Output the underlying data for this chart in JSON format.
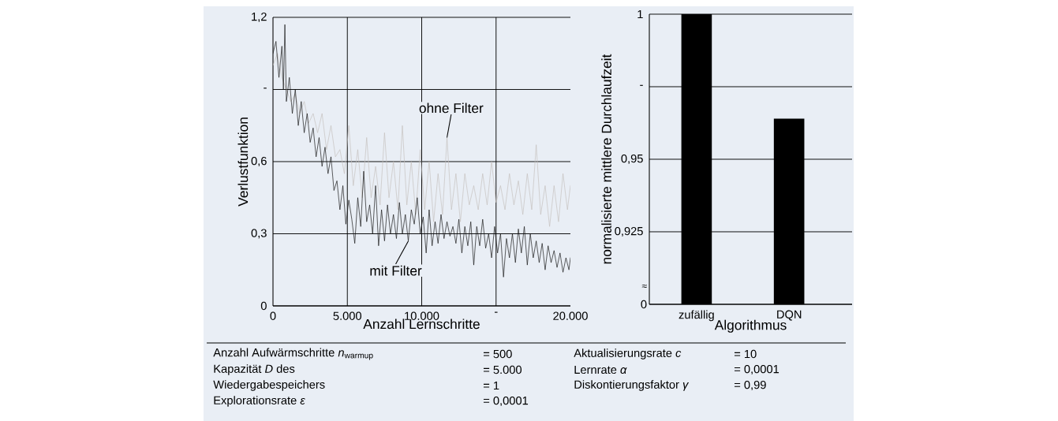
{
  "chart_data": [
    {
      "type": "line",
      "xlabel": "Anzahl Lernschritte",
      "ylabel": "Verlustfunktion",
      "xlim": [
        0,
        20000
      ],
      "ylim": [
        0,
        1.2
      ],
      "xticks": [
        0,
        {
          "value": 5000,
          "label": "5.000"
        },
        {
          "value": 10000,
          "label": "10.000"
        },
        {
          "value": 15000,
          "label": "-"
        },
        {
          "value": 20000,
          "label": "20.000"
        }
      ],
      "yticks": [
        0,
        {
          "value": 0.3,
          "label": "0,3"
        },
        {
          "value": 0.6,
          "label": "0,6"
        },
        {
          "value": 0.9,
          "label": "-"
        },
        {
          "value": 1.2,
          "label": "1,2"
        }
      ],
      "grid": true,
      "marker": "none",
      "series": [
        {
          "name": "ohne Filter",
          "color": "#c4bfbd",
          "x": [
            0,
            300,
            600,
            900,
            1200,
            1500,
            1800,
            2100,
            2400,
            2700,
            3000,
            3300,
            3600,
            3900,
            4200,
            4500,
            4800,
            5100,
            5400,
            5700,
            6000,
            6300,
            6600,
            6900,
            7200,
            7500,
            7800,
            8100,
            8400,
            8700,
            9000,
            9300,
            9600,
            9900,
            10200,
            10500,
            10800,
            11100,
            11400,
            11700,
            12000,
            12300,
            12600,
            12900,
            13200,
            13500,
            13800,
            14100,
            14400,
            14700,
            15000,
            15300,
            15600,
            15900,
            16200,
            16500,
            16800,
            17100,
            17400,
            17700,
            18000,
            18300,
            18600,
            18900,
            19200,
            19500,
            19800,
            20000
          ],
          "values": [
            1.0,
            1.05,
            0.95,
            0.9,
            0.85,
            0.88,
            0.8,
            0.85,
            0.76,
            0.8,
            0.72,
            0.8,
            0.65,
            0.75,
            0.62,
            0.65,
            0.55,
            0.75,
            0.5,
            0.65,
            0.45,
            0.7,
            0.45,
            0.58,
            0.42,
            0.72,
            0.45,
            0.6,
            0.4,
            0.75,
            0.42,
            0.6,
            0.38,
            0.65,
            0.4,
            0.6,
            0.35,
            0.55,
            0.38,
            0.7,
            0.4,
            0.55,
            0.35,
            0.55,
            0.42,
            0.5,
            0.4,
            0.55,
            0.42,
            0.6,
            0.43,
            0.5,
            0.4,
            0.55,
            0.42,
            0.52,
            0.38,
            0.55,
            0.4,
            0.67,
            0.38,
            0.5,
            0.33,
            0.5,
            0.35,
            0.55,
            0.4,
            0.5
          ]
        },
        {
          "name": "mit Filter",
          "color": "#111111",
          "x": [
            0,
            200,
            400,
            600,
            700,
            800,
            900,
            1100,
            1300,
            1500,
            1700,
            1900,
            2100,
            2300,
            2500,
            2700,
            2900,
            3100,
            3300,
            3500,
            3700,
            3900,
            4100,
            4300,
            4500,
            4700,
            4900,
            5100,
            5300,
            5500,
            5700,
            5900,
            6100,
            6300,
            6500,
            6700,
            6900,
            7100,
            7300,
            7500,
            7700,
            7900,
            8100,
            8300,
            8500,
            8700,
            8900,
            9100,
            9300,
            9500,
            9700,
            9900,
            10100,
            10300,
            10500,
            10700,
            10900,
            11100,
            11300,
            11500,
            11700,
            11900,
            12100,
            12300,
            12500,
            12700,
            12900,
            13100,
            13300,
            13500,
            13700,
            13900,
            14100,
            14300,
            14500,
            14700,
            14900,
            15100,
            15300,
            15500,
            15700,
            15900,
            16100,
            16300,
            16500,
            16700,
            16900,
            17100,
            17300,
            17500,
            17700,
            17900,
            18100,
            18300,
            18500,
            18700,
            18900,
            19100,
            19300,
            19500,
            19700,
            19900,
            20000
          ],
          "values": [
            1.05,
            1.1,
            0.95,
            1.08,
            0.9,
            1.17,
            0.85,
            0.95,
            0.8,
            0.9,
            0.75,
            0.85,
            0.72,
            0.8,
            0.68,
            0.74,
            0.62,
            0.7,
            0.58,
            0.66,
            0.55,
            0.62,
            0.48,
            0.52,
            0.4,
            0.5,
            0.34,
            0.44,
            0.36,
            0.26,
            0.45,
            0.33,
            0.56,
            0.35,
            0.42,
            0.3,
            0.5,
            0.25,
            0.4,
            0.27,
            0.42,
            0.3,
            0.38,
            0.28,
            0.43,
            0.3,
            0.38,
            0.27,
            0.4,
            0.34,
            0.45,
            0.3,
            0.37,
            0.22,
            0.4,
            0.25,
            0.35,
            0.26,
            0.38,
            0.28,
            0.35,
            0.29,
            0.33,
            0.26,
            0.36,
            0.22,
            0.33,
            0.25,
            0.35,
            0.17,
            0.33,
            0.25,
            0.36,
            0.24,
            0.3,
            0.2,
            0.33,
            0.22,
            0.3,
            0.12,
            0.28,
            0.2,
            0.3,
            0.18,
            0.32,
            0.22,
            0.33,
            0.17,
            0.3,
            0.2,
            0.27,
            0.18,
            0.26,
            0.15,
            0.25,
            0.18,
            0.23,
            0.16,
            0.22,
            0.14,
            0.2,
            0.15,
            0.2
          ]
        }
      ]
    },
    {
      "type": "bar",
      "xlabel": "Algorithmus",
      "ylabel": "normalisierte mittlere Durchlaufzeit",
      "categories": [
        "zufällig",
        "DQN"
      ],
      "values": [
        1.0,
        0.964
      ],
      "color": "#000000",
      "ylim": [
        0.9,
        1
      ],
      "yticks": [
        {
          "value": 0.9,
          "label": null
        },
        {
          "value": 0.925,
          "label": "0,925"
        },
        {
          "value": 0.95,
          "label": "0,95"
        },
        {
          "value": 0.975,
          "label": "-"
        },
        1
      ],
      "grid": "y",
      "annotations": [
        "≈",
        "0"
      ]
    },
    {
      "type": "other",
      "annotations": [
        "Anzahl Aufwärmschritte *n*$_{warmup}$",
        "= 500",
        "Kapazität *D* des",
        "= 5.000",
        "Wiedergabespeichers",
        "= 1",
        "Explorationsrate *ε*",
        "= 0,0001",
        "Aktualisierungsrate *c*",
        "= 10",
        "Lernrate *α*",
        "= 0,0001",
        "Diskontierungsfaktor *γ*",
        "= 0,99"
      ]
    }
  ]
}
